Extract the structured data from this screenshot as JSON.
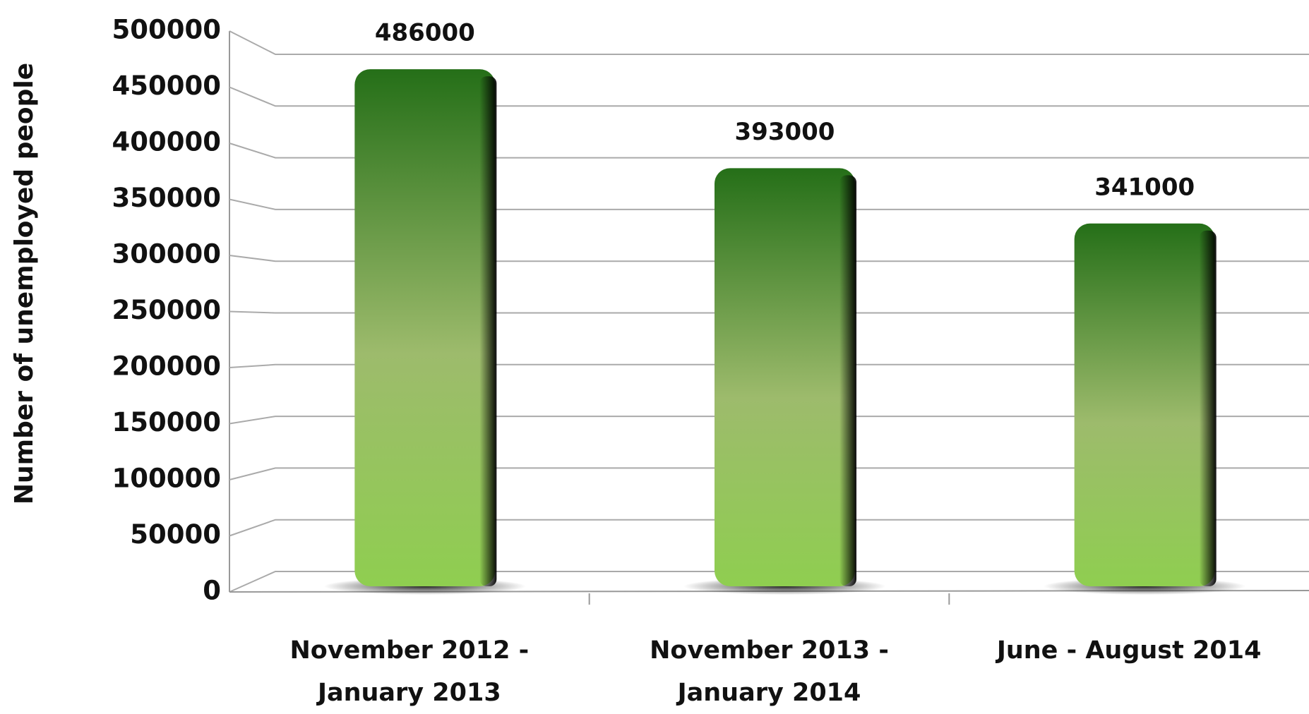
{
  "chart_data": {
    "type": "bar",
    "y_label": "Number of unemployed people",
    "categories": [
      "November 2012 - January 2013",
      "November 2013 - January 2014",
      "June - August 2014"
    ],
    "values": [
      486000,
      393000,
      341000
    ],
    "color": "#8fce50",
    "ylim": [
      0,
      500000
    ],
    "yticks": [
      0,
      50000,
      100000,
      150000,
      200000,
      250000,
      300000,
      350000,
      400000,
      450000,
      500000
    ],
    "grid": true
  }
}
